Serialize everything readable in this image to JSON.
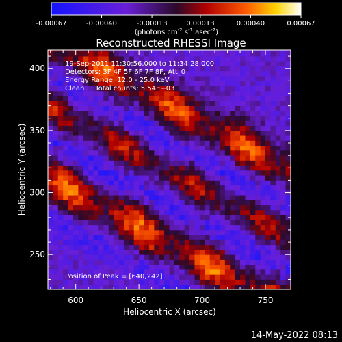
{
  "chart_data": {
    "type": "heatmap",
    "title": "Reconstructed RHESSI Image",
    "xlabel": "Heliocentric X (arcsec)",
    "ylabel": "Heliocentric Y (arcsec)",
    "xlim": [
      578,
      770
    ],
    "ylim": [
      222,
      415
    ],
    "xticks": [
      600,
      650,
      700,
      750
    ],
    "yticks": [
      250,
      300,
      350,
      400
    ],
    "colorbar": {
      "ticks": [
        "-0.00067",
        "-0.00040",
        "-0.00013",
        "0.00013",
        "0.00040",
        "0.00067"
      ],
      "unit_label": "(photons cm",
      "unit_sup1": "-2",
      "unit_mid": " s",
      "unit_sup2": "-1",
      "unit_end": " asec",
      "unit_sup3": "-2",
      "unit_close": ")",
      "range": [
        -0.00067,
        0.00067
      ]
    },
    "annotations": [
      "19-Sep-2011 11:30:56.000 to 11:34:28.000",
      "Detectors: 3F 4F 5F 6F 7F 8F, Att_0",
      "Energy Range: 12.0 - 25.0 keV",
      "Clean     Total counts: 5.54E+03"
    ],
    "peak_label": "Position of Peak = [640,242]",
    "peak_position": [
      640,
      242
    ],
    "bands": [
      {
        "name": "upper",
        "intercept": 410,
        "slope": -0.55,
        "amplitude": 0.00065,
        "width": 14
      },
      {
        "name": "middle",
        "intercept": 358,
        "slope": -0.55,
        "amplitude": 0.0005,
        "width": 12
      },
      {
        "name": "lower",
        "intercept": 300,
        "slope": -0.55,
        "amplitude": 0.00067,
        "width": 16
      }
    ],
    "troughs": [
      {
        "intercept": 383,
        "slope": -0.55,
        "amplitude": -0.00045,
        "width": 10
      },
      {
        "intercept": 328,
        "slope": -0.55,
        "amplitude": -0.0005,
        "width": 10
      },
      {
        "intercept": 270,
        "slope": -0.55,
        "amplitude": -0.0004,
        "width": 10
      }
    ]
  },
  "timestamp": "14-May-2022 08:13"
}
